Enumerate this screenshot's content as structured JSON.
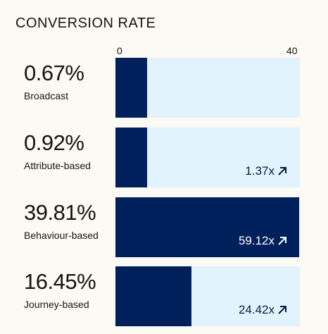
{
  "title": "CONVERSION RATE",
  "chart_data": {
    "type": "bar",
    "orientation": "horizontal",
    "title": "CONVERSION RATE",
    "xlim": [
      0,
      40
    ],
    "ticks": [
      "0",
      "40"
    ],
    "categories": [
      "Broadcast",
      "Attribute-based",
      "Behaviour-based",
      "Journey-based"
    ],
    "values": [
      0.67,
      0.92,
      39.81,
      16.45
    ],
    "value_labels": [
      "0.67%",
      "0.92%",
      "39.81%",
      "16.45%"
    ],
    "multipliers": [
      "",
      "1.37x",
      "59.12x",
      "24.42x"
    ],
    "colors": {
      "fill": "#00205b",
      "track": "#e3f3fe"
    }
  }
}
